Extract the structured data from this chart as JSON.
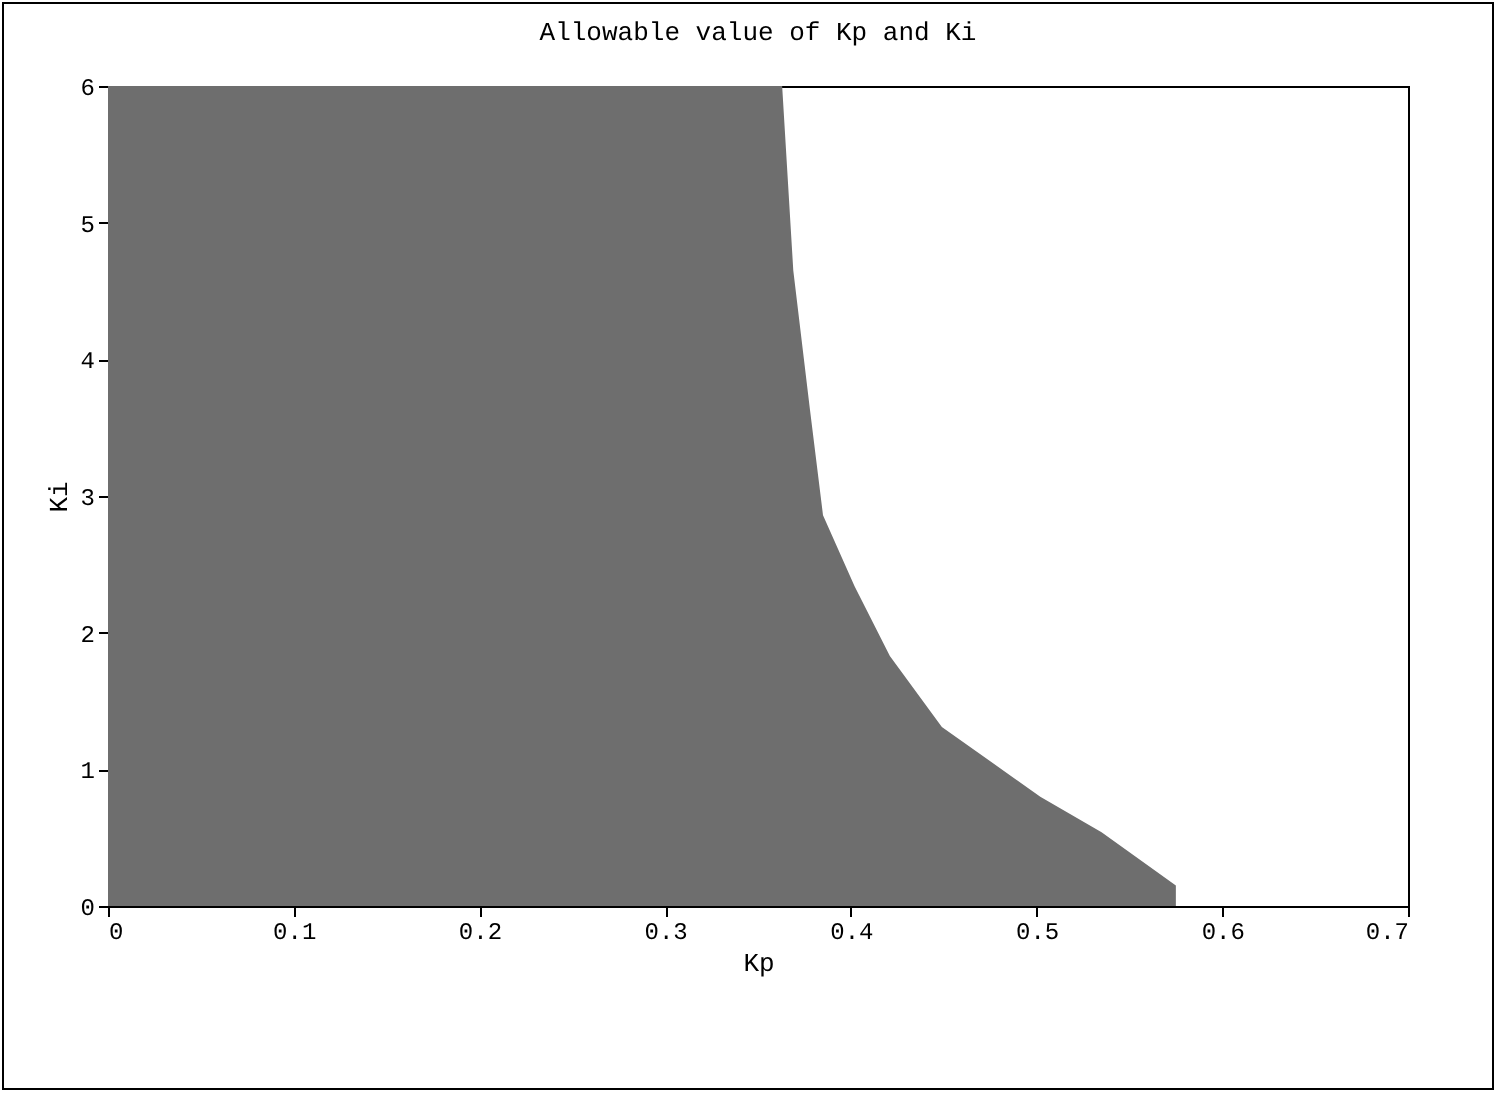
{
  "chart_data": {
    "type": "area",
    "title": "Allowable value of Kp and Ki",
    "xlabel": "Kp",
    "ylabel": "Ki",
    "x": [
      0,
      0.363,
      0.369,
      0.378,
      0.385,
      0.402,
      0.421,
      0.449,
      0.502,
      0.535,
      0.575
    ],
    "series": [
      {
        "color": "#6e6e6e",
        "values": [
          6,
          6,
          4.65,
          3.63,
          2.86,
          2.34,
          1.83,
          1.31,
          0.8,
          0.54,
          0.15
        ]
      }
    ],
    "xlim": [
      0,
      0.7
    ],
    "xticks": [
      0,
      0.1,
      0.2,
      0.3,
      0.4,
      0.5,
      0.6,
      0.7
    ],
    "ylim": [
      0,
      6
    ],
    "yticks": [
      0,
      1,
      2,
      3,
      4,
      5,
      6
    ],
    "grid": false
  }
}
